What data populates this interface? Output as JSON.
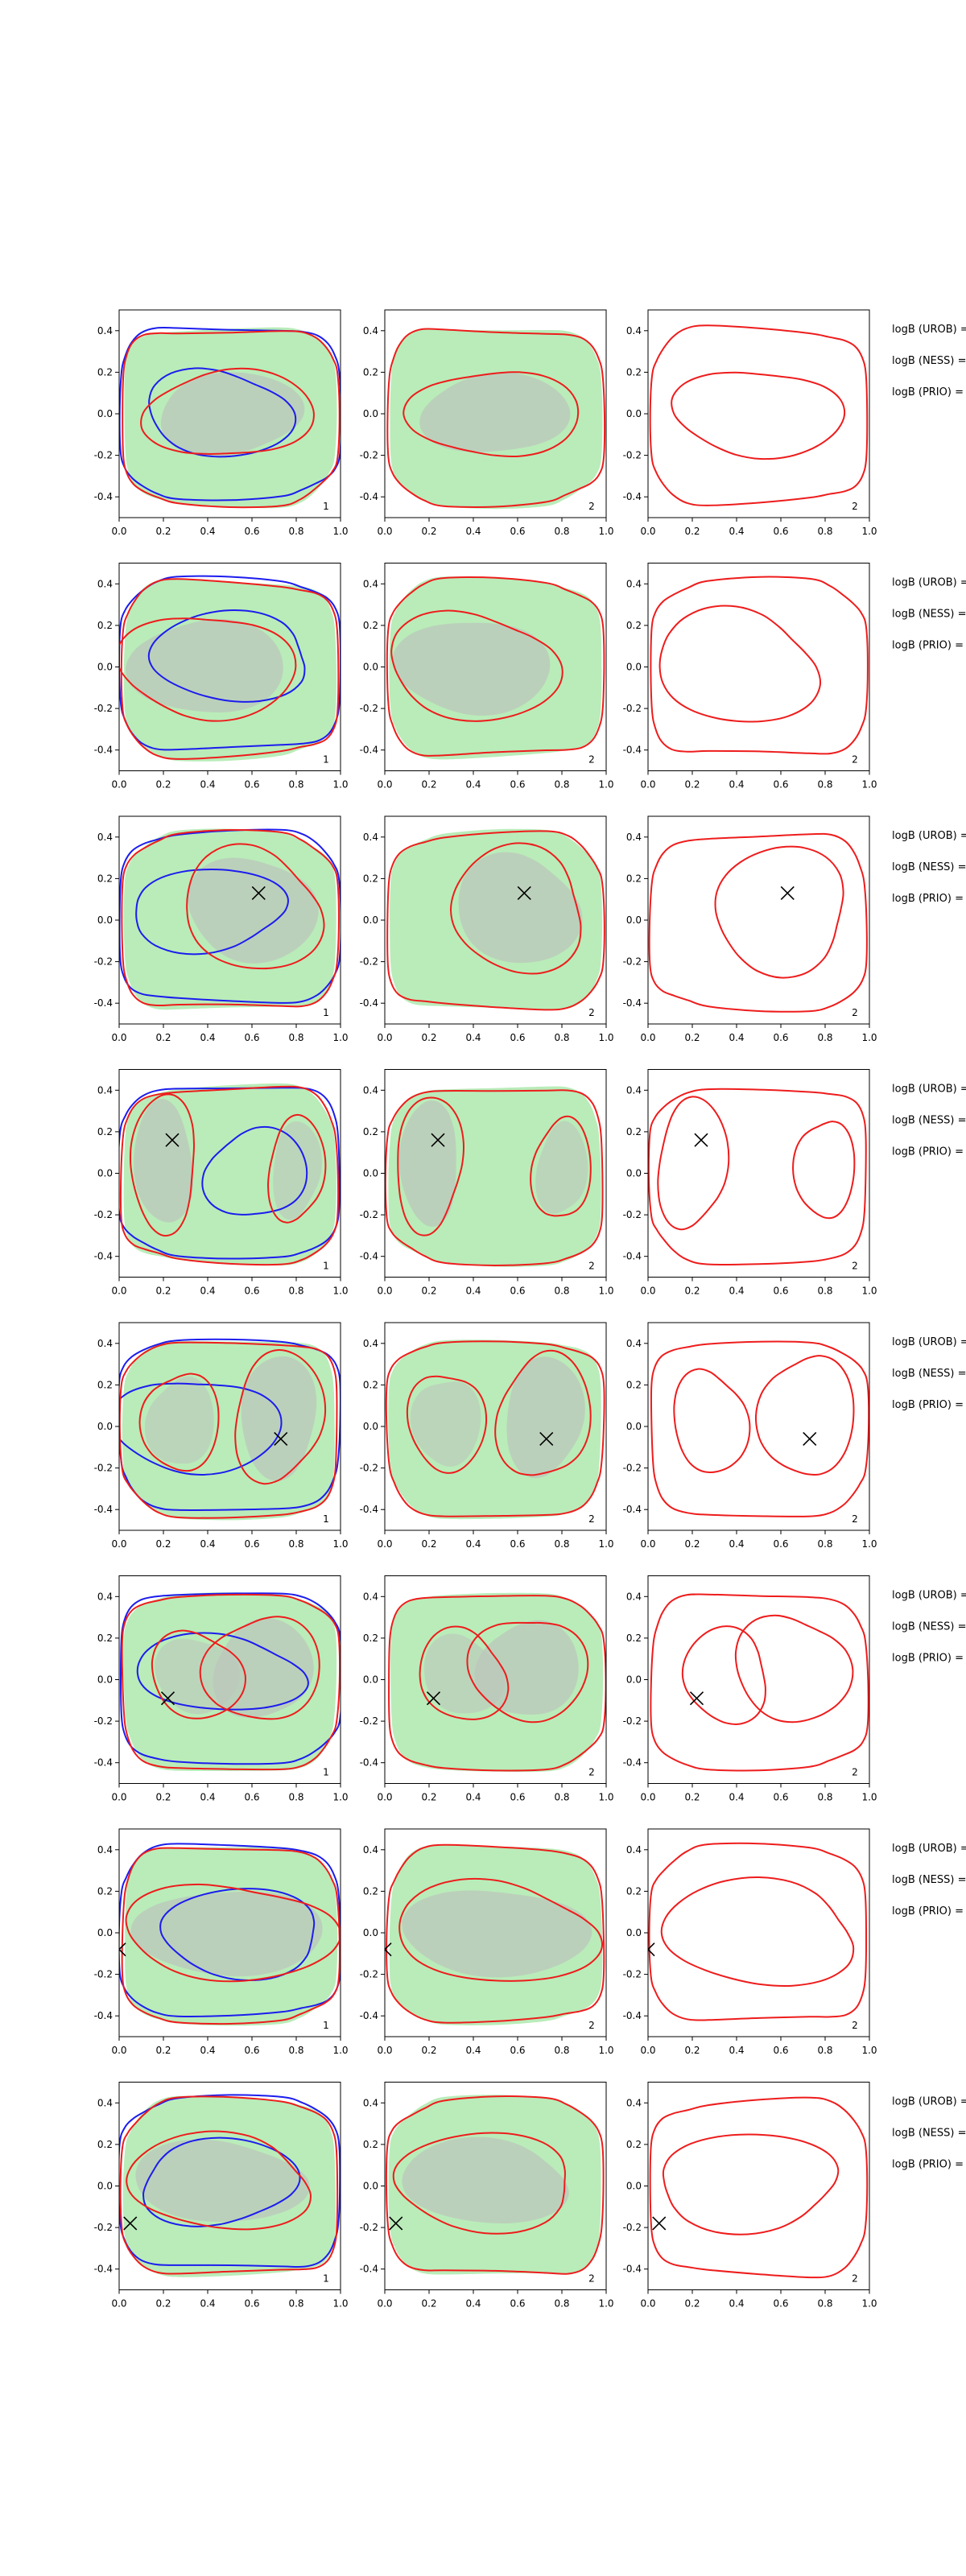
{
  "chart_data": {
    "type": "contour",
    "layout": "8 rows x 3 panels",
    "xlim": [
      0.0,
      1.0
    ],
    "ylim": [
      -0.5,
      0.5
    ],
    "x_ticks": [
      "0.0",
      "0.2",
      "0.4",
      "0.6",
      "0.8",
      "1.0"
    ],
    "y_ticks": [
      "-0.4",
      "-0.2",
      "0.0",
      "0.2",
      "0.4"
    ],
    "panel_labels": [
      "1",
      "2",
      "2"
    ],
    "legend_lines": [
      "logB (UROB) =",
      "logB (NESS) =",
      "logB (PRIO) ="
    ],
    "colors": {
      "posterior_fill": "#b9ecb9",
      "prior_fill": "#bcc7bc",
      "red_contour": "#ee1c1c",
      "blue_contour": "#1c1cee",
      "marker": "#000000"
    },
    "rows": [
      {
        "marker": null
      },
      {
        "marker": null
      },
      {
        "marker": [
          0.63,
          0.13
        ]
      },
      {
        "marker": [
          0.24,
          0.16
        ]
      },
      {
        "marker": [
          0.73,
          -0.06
        ]
      },
      {
        "marker": [
          0.22,
          -0.09
        ]
      },
      {
        "marker": [
          0.0,
          -0.08
        ]
      },
      {
        "marker": [
          0.05,
          -0.18
        ]
      }
    ]
  }
}
